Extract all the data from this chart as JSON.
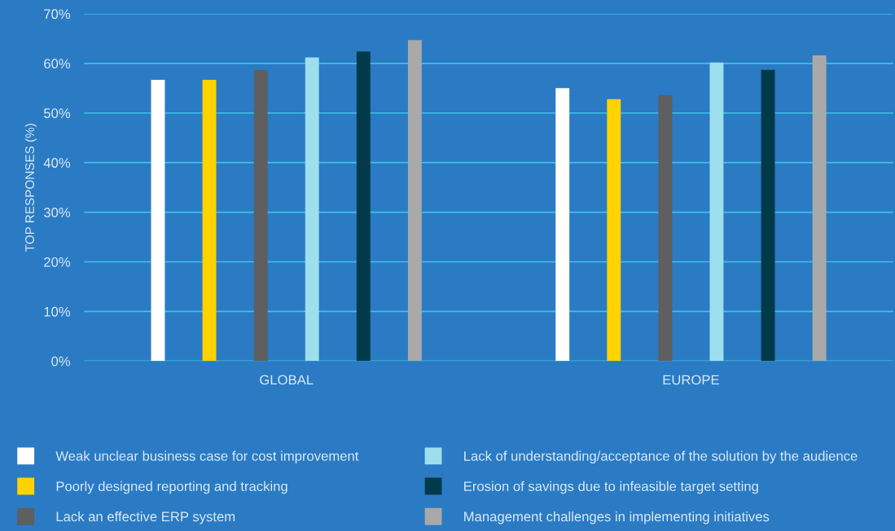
{
  "chart_data": {
    "type": "bar",
    "ylabel": "TOP RESPONSES (%)",
    "categories": [
      "GLOBAL",
      "EUROPE"
    ],
    "series": [
      {
        "name": "Weak unclear business case for cost improvement",
        "color": "#ffffff",
        "values": [
          56.7,
          55.0
        ]
      },
      {
        "name": "Poorly designed reporting and tracking",
        "color": "#ffd200",
        "values": [
          56.7,
          52.8
        ]
      },
      {
        "name": "Lack an effective ERP system",
        "color": "#5f5f5f",
        "values": [
          58.7,
          53.6
        ]
      },
      {
        "name": "Lack of understanding/acceptance of the solution by the audience",
        "color": "#9ddfec",
        "values": [
          61.2,
          60.2
        ]
      },
      {
        "name": "Erosion of savings due to infeasible target setting",
        "color": "#033a4a",
        "values": [
          62.4,
          58.7
        ]
      },
      {
        "name": "Management challenges in implementing initiatives",
        "color": "#a9a9a9",
        "values": [
          64.7,
          61.6
        ]
      }
    ],
    "ylim": [
      0,
      70
    ],
    "yticks": [
      {
        "value": 0,
        "label": "0%"
      },
      {
        "value": 10,
        "label": "10%"
      },
      {
        "value": 20,
        "label": "20%"
      },
      {
        "value": 30,
        "label": "30%"
      },
      {
        "value": 40,
        "label": "40%"
      },
      {
        "value": 50,
        "label": "50%"
      },
      {
        "value": 60,
        "label": "60%"
      },
      {
        "value": 70,
        "label": "70%"
      }
    ],
    "grid": "y",
    "legend": "bottom"
  }
}
